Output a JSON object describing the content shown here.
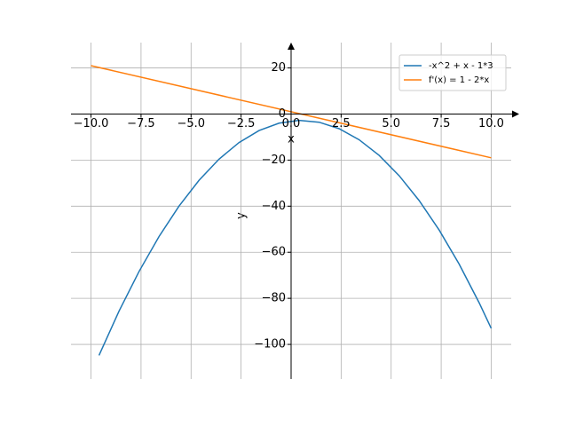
{
  "chart_data": {
    "type": "line",
    "xlabel": "x",
    "ylabel": "y",
    "xlim": [
      -11,
      11
    ],
    "ylim": [
      -115,
      31
    ],
    "xticks": [
      {
        "value": -10,
        "label": "−10.0"
      },
      {
        "value": -7.5,
        "label": "−7.5"
      },
      {
        "value": -5,
        "label": "−5.0"
      },
      {
        "value": -2.5,
        "label": "−2.5"
      },
      {
        "value": 0,
        "label": "0.0"
      },
      {
        "value": 2.5,
        "label": "2.5"
      },
      {
        "value": 5,
        "label": "5.0"
      },
      {
        "value": 7.5,
        "label": "7.5"
      },
      {
        "value": 10,
        "label": "10.0"
      }
    ],
    "yticks": [
      {
        "value": -100,
        "label": "−100"
      },
      {
        "value": -80,
        "label": "−80"
      },
      {
        "value": -60,
        "label": "−60"
      },
      {
        "value": -40,
        "label": "−40"
      },
      {
        "value": -20,
        "label": "−20"
      },
      0,
      20
    ],
    "grid": true,
    "legend": "upper right",
    "series": [
      {
        "name": "-x^2 + x - 1*3",
        "color": "#1f77b4",
        "x": [
          -9.6,
          -8.6,
          -7.6,
          -6.6,
          -5.6,
          -4.6,
          -3.6,
          -2.6,
          -1.6,
          -0.6,
          0.4,
          1.4,
          2.4,
          3.4,
          4.4,
          5.4,
          6.4,
          7.4,
          8.4,
          9.4,
          10
        ],
        "values": [
          -104.76,
          -85.56,
          -68.36,
          -53.16,
          -39.96,
          -28.76,
          -19.56,
          -12.36,
          -7.16,
          -3.96,
          -2.76,
          -3.56,
          -6.36,
          -11.16,
          -17.96,
          -26.76,
          -37.56,
          -50.36,
          -65.16,
          -81.96,
          -93
        ]
      },
      {
        "name": "f'(x) = 1 - 2*x",
        "color": "#ff7f0e",
        "x": [
          -10,
          10
        ],
        "values": [
          21,
          -19
        ]
      }
    ]
  }
}
